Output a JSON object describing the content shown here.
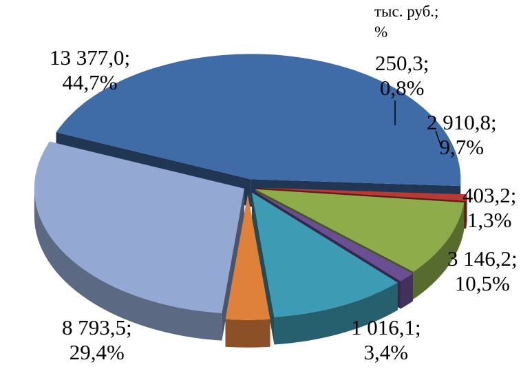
{
  "chart_data": {
    "type": "pie",
    "style": "3d-exploded",
    "unit_label": [
      "тыс. руб.;",
      "%"
    ],
    "slices": [
      {
        "value": 13377.0,
        "percent": 44.7,
        "label": [
          "13 377,0;",
          "44,7%"
        ],
        "color": "#3f6ba6"
      },
      {
        "value": 250.3,
        "percent": 0.8,
        "label": [
          "250,3;",
          "0,8%"
        ],
        "color": "#b73a35"
      },
      {
        "value": 2910.8,
        "percent": 9.7,
        "label": [
          "2 910,8;",
          "9,7%"
        ],
        "color": "#8ead4a"
      },
      {
        "value": 403.2,
        "percent": 1.3,
        "label": [
          "403,2;",
          "1,3%"
        ],
        "color": "#6a4f93"
      },
      {
        "value": 3146.2,
        "percent": 10.5,
        "label": [
          "3 146,2;",
          "10,5%"
        ],
        "color": "#3d9bb3"
      },
      {
        "value": 1016.1,
        "percent": 3.4,
        "label": [
          "1 016,1;",
          "3,4%"
        ],
        "color": "#e0813b"
      },
      {
        "value": 8793.5,
        "percent": 29.4,
        "label": [
          "8 793,5;",
          "29,4%"
        ],
        "color": "#93a9d3"
      }
    ]
  }
}
